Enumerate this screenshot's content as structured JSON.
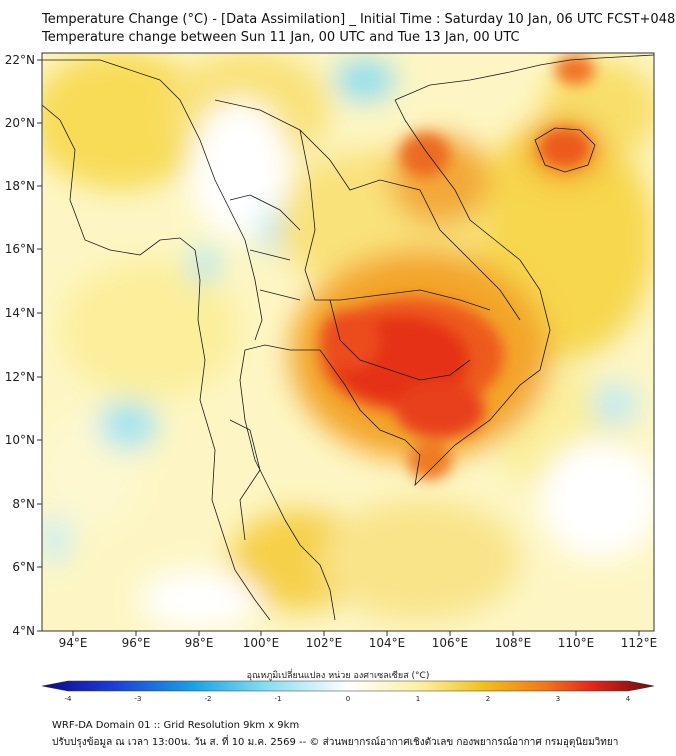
{
  "title": {
    "line1": "Temperature Change (°C) - [Data Assimilation] _ Initial Time : Saturday 10 Jan, 06 UTC FCST+048",
    "line2": "Temperature change between Sun 11 Jan, 00 UTC and Tue 13 Jan, 00 UTC"
  },
  "axes": {
    "lon_ticks": [
      "94°E",
      "96°E",
      "98°E",
      "100°E",
      "102°E",
      "104°E",
      "106°E",
      "108°E",
      "110°E",
      "112°E"
    ],
    "lat_ticks": [
      "22°N",
      "20°N",
      "18°N",
      "16°N",
      "14°N",
      "12°N",
      "10°N",
      "8°N",
      "6°N",
      "4°N"
    ],
    "lon_range": [
      93,
      112.5
    ],
    "lat_range": [
      4,
      22.3
    ]
  },
  "colorbar": {
    "label": "อุณหภูมิเปลี่ยนแปลง หน่วย องศาเซลเซียส (°C)",
    "ticks": [
      "-4",
      "-3",
      "-2",
      "-1",
      "0",
      "1",
      "2",
      "3",
      "4"
    ],
    "min": -4,
    "max": 4
  },
  "footer": {
    "line1": "WRF-DA Domain 01 :: Grid Resolution 9km x 9km",
    "line2": "ปรับปรุงข้อมูล ณ เวลา 13:00น. วัน ส. ที่ 10 ม.ค. 2569 -- © ส่วนพยากรณ์อากาศเชิงตัวเลข กองพยากรณ์อากาศ กรมอุตุนิยมวิทยา"
  },
  "colors": {
    "cold_max": "#0a0a8a",
    "cold_mid": "#35c8ee",
    "neutral": "#ffffff",
    "warm_light": "#fbf0a0",
    "warm_mid": "#f2c11c",
    "warm_hot": "#e8421a",
    "warm_max": "#6e0a0a"
  }
}
